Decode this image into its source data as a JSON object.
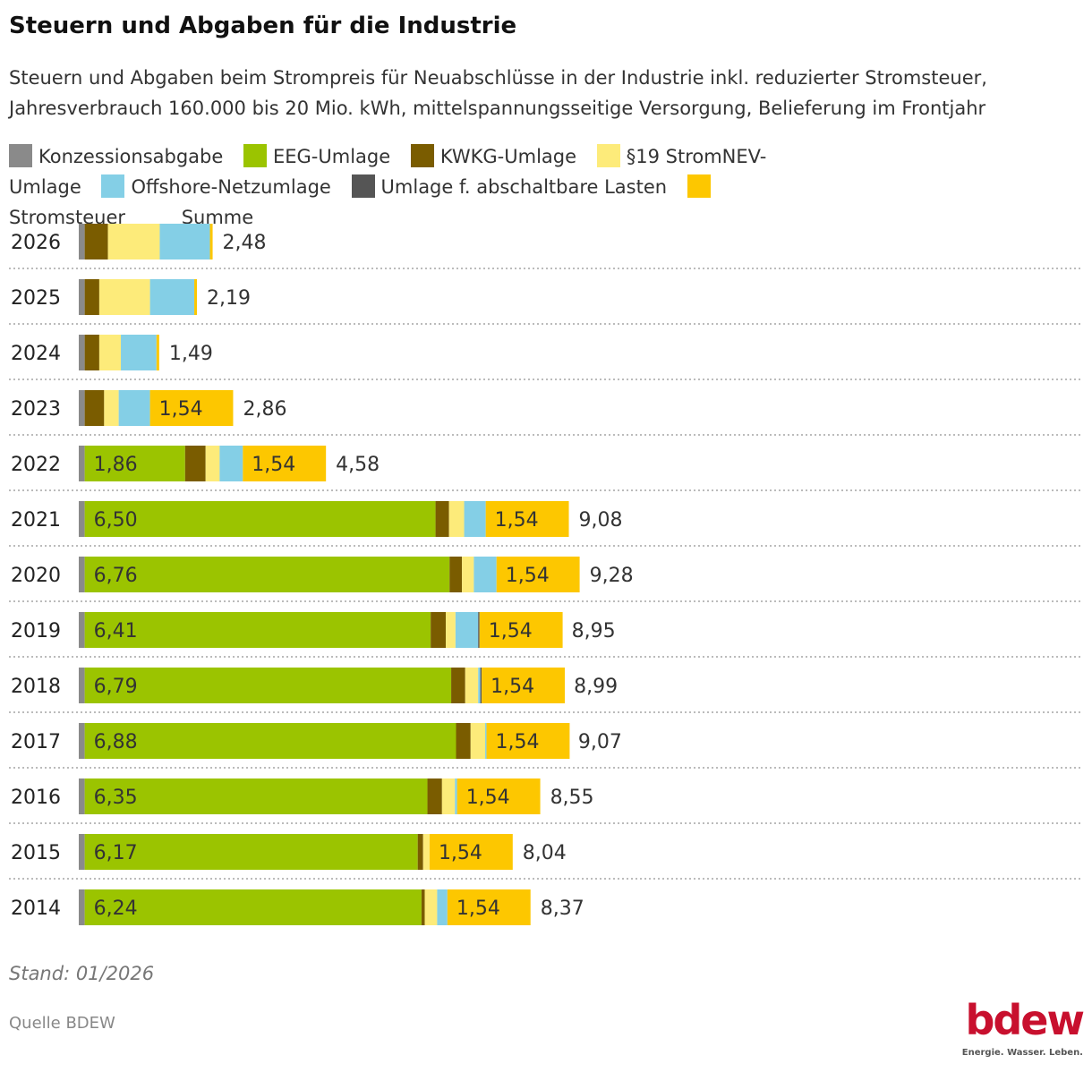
{
  "title": "Steuern und Abgaben für die Industrie",
  "subtitle": "Steuern und Abgaben beim Strompreis für Neuabschlüsse in der Industrie inkl. reduzierter Stromsteuer, Jahresverbrauch 160.000 bis 20 Mio. kWh, mittelspannungsseitige Versorgung, Belieferung im Frontjahr",
  "stand": "Stand: 01/2026",
  "source": "Quelle BDEW",
  "logo": {
    "wordmark": "bdew",
    "tagline": "Energie. Wasser. Leben."
  },
  "chart_data": {
    "type": "bar",
    "orientation": "horizontal-stacked",
    "legend_position": "top",
    "grid": false,
    "total_label": "Summe",
    "categories": [
      "2026",
      "2025",
      "2024",
      "2023",
      "2022",
      "2021",
      "2020",
      "2019",
      "2018",
      "2017",
      "2016",
      "2015",
      "2014"
    ],
    "series": [
      {
        "name": "Konzessionsabgabe",
        "color": "#8a8a8a",
        "values": [
          0.11,
          0.11,
          0.11,
          0.11,
          0.11,
          0.11,
          0.11,
          0.11,
          0.11,
          0.11,
          0.11,
          0.11,
          0.11
        ]
      },
      {
        "name": "EEG-Umlage",
        "color": "#9bc400",
        "values": [
          0,
          0,
          0,
          0,
          1.86,
          6.5,
          6.76,
          6.41,
          6.79,
          6.88,
          6.35,
          6.17,
          6.24
        ]
      },
      {
        "name": "KWKG-Umlage",
        "color": "#7a5c00",
        "values": [
          0.43,
          0.27,
          0.27,
          0.36,
          0.38,
          0.25,
          0.23,
          0.28,
          0.26,
          0.27,
          0.27,
          0.1,
          0.06
        ]
      },
      {
        "name": "§19 StromNEV-Umlage",
        "color": "#fdeb7a",
        "values": [
          0.96,
          0.94,
          0.4,
          0.27,
          0.26,
          0.28,
          0.22,
          0.18,
          0.24,
          0.27,
          0.24,
          0.12,
          0.23
        ]
      },
      {
        "name": "Offshore-Netzumlage",
        "color": "#84cfe6",
        "values": [
          0.93,
          0.82,
          0.66,
          0.58,
          0.43,
          0.4,
          0.42,
          0.42,
          0.04,
          0.01,
          0.04,
          0,
          0.19
        ]
      },
      {
        "name": "Umlage f. abschaltbare Lasten",
        "color": "#555555",
        "values": [
          0,
          0,
          0,
          0,
          0,
          0,
          0,
          0.01,
          0.01,
          0,
          0,
          0,
          0
        ]
      },
      {
        "name": "Stromsteuer",
        "color": "#fdc700",
        "values": [
          0.05,
          0.05,
          0.05,
          1.54,
          1.54,
          1.54,
          1.54,
          1.54,
          1.54,
          1.54,
          1.54,
          1.54,
          1.54
        ]
      }
    ],
    "totals": [
      2.48,
      2.19,
      1.49,
      2.86,
      4.58,
      9.08,
      9.28,
      8.95,
      8.99,
      9.07,
      8.55,
      8.04,
      8.37
    ]
  }
}
